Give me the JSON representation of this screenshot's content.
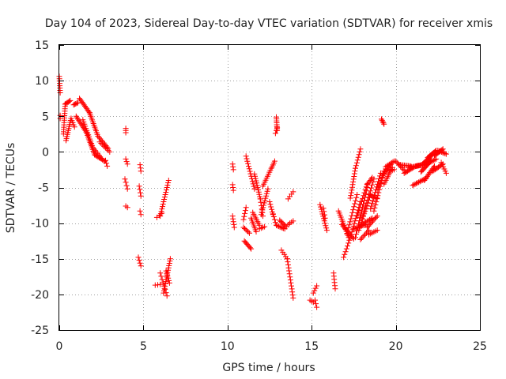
{
  "chart_data": {
    "type": "scatter",
    "title": "Day 104 of 2023, Sidereal Day-to-day VTEC variation (SDTVAR) for receiver xmis",
    "xlabel": "GPS time / hours",
    "ylabel": "SDTVAR / TECUs",
    "xlim": [
      0,
      25
    ],
    "ylim": [
      -25,
      15
    ],
    "x_ticks": [
      0,
      5,
      10,
      15,
      20,
      25
    ],
    "x_tick_labels": [
      "0",
      "5",
      "10",
      "15",
      "20",
      "25"
    ],
    "y_ticks": [
      15,
      10,
      5,
      0,
      -5,
      -10,
      -15,
      -20,
      -25
    ],
    "y_tick_labels": [
      "15",
      "10",
      "5",
      "0",
      "-5",
      "-10",
      "-15",
      "-20",
      "-25"
    ],
    "grid": true,
    "marker": "+",
    "marker_color": "#ff0000",
    "series_segments": [
      {
        "x0": 0.0,
        "y0": 10.6,
        "x1": 0.05,
        "y1": 8.3,
        "n": 8
      },
      {
        "x0": 0.05,
        "y0": 5.1,
        "x1": 0.05,
        "y1": 4.7,
        "n": 2
      },
      {
        "x0": 0.25,
        "y0": 2.5,
        "x1": 0.35,
        "y1": 6.7,
        "n": 14
      },
      {
        "x0": 0.35,
        "y0": 6.7,
        "x1": 0.65,
        "y1": 7.2,
        "n": 6
      },
      {
        "x0": 0.4,
        "y0": 1.6,
        "x1": 0.7,
        "y1": 4.7,
        "n": 12
      },
      {
        "x0": 0.7,
        "y0": 4.7,
        "x1": 0.9,
        "y1": 3.5,
        "n": 5
      },
      {
        "x0": 0.85,
        "y0": 6.6,
        "x1": 1.1,
        "y1": 6.9,
        "n": 5
      },
      {
        "x0": 1.0,
        "y0": 5.0,
        "x1": 1.6,
        "y1": 2.8,
        "n": 12
      },
      {
        "x0": 1.6,
        "y0": 2.8,
        "x1": 2.1,
        "y1": -0.4,
        "n": 14
      },
      {
        "x0": 2.1,
        "y0": -0.4,
        "x1": 2.7,
        "y1": -1.3,
        "n": 10
      },
      {
        "x0": 1.2,
        "y0": 7.5,
        "x1": 1.8,
        "y1": 5.5,
        "n": 12
      },
      {
        "x0": 1.8,
        "y0": 5.5,
        "x1": 2.3,
        "y1": 2.2,
        "n": 14
      },
      {
        "x0": 2.3,
        "y0": 2.2,
        "x1": 2.9,
        "y1": 0.5,
        "n": 10
      },
      {
        "x0": 1.4,
        "y0": 4.5,
        "x1": 2.0,
        "y1": 0.6,
        "n": 14
      },
      {
        "x0": 2.0,
        "y0": 0.6,
        "x1": 2.5,
        "y1": -0.9,
        "n": 8
      },
      {
        "x0": 2.4,
        "y0": 1.4,
        "x1": 3.0,
        "y1": 0.0,
        "n": 8
      },
      {
        "x0": 2.75,
        "y0": -1.2,
        "x1": 2.85,
        "y1": -2.0,
        "n": 3
      },
      {
        "x0": 3.95,
        "y0": 3.3,
        "x1": 3.95,
        "y1": 2.7,
        "n": 3
      },
      {
        "x0": 3.95,
        "y0": -1.0,
        "x1": 4.05,
        "y1": -1.7,
        "n": 3
      },
      {
        "x0": 3.9,
        "y0": -3.8,
        "x1": 4.05,
        "y1": -5.2,
        "n": 4
      },
      {
        "x0": 3.95,
        "y0": -7.6,
        "x1": 4.05,
        "y1": -7.8,
        "n": 2
      },
      {
        "x0": 4.8,
        "y0": -1.8,
        "x1": 4.85,
        "y1": -2.7,
        "n": 3
      },
      {
        "x0": 4.75,
        "y0": -4.8,
        "x1": 4.85,
        "y1": -6.2,
        "n": 4
      },
      {
        "x0": 4.8,
        "y0": -8.3,
        "x1": 4.85,
        "y1": -8.8,
        "n": 2
      },
      {
        "x0": 4.7,
        "y0": -14.8,
        "x1": 4.85,
        "y1": -16.0,
        "n": 4
      },
      {
        "x0": 5.8,
        "y0": -9.2,
        "x1": 6.1,
        "y1": -8.6,
        "n": 3
      },
      {
        "x0": 6.0,
        "y0": -9.0,
        "x1": 6.5,
        "y1": -4.0,
        "n": 16
      },
      {
        "x0": 5.7,
        "y0": -18.7,
        "x1": 6.0,
        "y1": -18.6,
        "n": 3
      },
      {
        "x0": 6.0,
        "y0": -17.0,
        "x1": 6.4,
        "y1": -20.2,
        "n": 8
      },
      {
        "x0": 6.2,
        "y0": -19.8,
        "x1": 6.6,
        "y1": -15.0,
        "n": 16
      },
      {
        "x0": 6.35,
        "y0": -16.7,
        "x1": 6.55,
        "y1": -18.4,
        "n": 6
      },
      {
        "x0": 10.3,
        "y0": -1.7,
        "x1": 10.35,
        "y1": -2.5,
        "n": 3
      },
      {
        "x0": 10.3,
        "y0": -4.6,
        "x1": 10.35,
        "y1": -5.4,
        "n": 3
      },
      {
        "x0": 10.3,
        "y0": -9.0,
        "x1": 10.4,
        "y1": -10.6,
        "n": 5
      },
      {
        "x0": 10.95,
        "y0": -9.5,
        "x1": 11.1,
        "y1": -7.8,
        "n": 5
      },
      {
        "x0": 10.95,
        "y0": -10.6,
        "x1": 11.3,
        "y1": -11.4,
        "n": 6
      },
      {
        "x0": 11.0,
        "y0": -12.5,
        "x1": 11.4,
        "y1": -13.6,
        "n": 8
      },
      {
        "x0": 11.1,
        "y0": -0.6,
        "x1": 11.6,
        "y1": -5.2,
        "n": 14
      },
      {
        "x0": 11.4,
        "y0": -9.3,
        "x1": 11.7,
        "y1": -11.2,
        "n": 8
      },
      {
        "x0": 11.5,
        "y0": -8.5,
        "x1": 11.9,
        "y1": -10.3,
        "n": 8
      },
      {
        "x0": 11.6,
        "y0": -3.1,
        "x1": 11.95,
        "y1": -6.6,
        "n": 12
      },
      {
        "x0": 11.95,
        "y0": -6.6,
        "x1": 12.1,
        "y1": -9.0,
        "n": 6
      },
      {
        "x0": 11.9,
        "y0": -10.8,
        "x1": 12.2,
        "y1": -10.5,
        "n": 4
      },
      {
        "x0": 12.0,
        "y0": -8.8,
        "x1": 12.4,
        "y1": -5.2,
        "n": 12
      },
      {
        "x0": 12.1,
        "y0": -4.8,
        "x1": 12.6,
        "y1": -2.3,
        "n": 10
      },
      {
        "x0": 12.5,
        "y0": -7.0,
        "x1": 12.7,
        "y1": -8.8,
        "n": 6
      },
      {
        "x0": 12.65,
        "y0": -2.1,
        "x1": 12.8,
        "y1": -1.3,
        "n": 4
      },
      {
        "x0": 12.7,
        "y0": -8.7,
        "x1": 12.9,
        "y1": -10.3,
        "n": 5
      },
      {
        "x0": 12.9,
        "y0": 4.9,
        "x1": 12.95,
        "y1": 3.0,
        "n": 8
      },
      {
        "x0": 12.85,
        "y0": 2.6,
        "x1": 12.95,
        "y1": 3.4,
        "n": 3
      },
      {
        "x0": 12.9,
        "y0": -10.3,
        "x1": 13.4,
        "y1": -10.8,
        "n": 8
      },
      {
        "x0": 13.1,
        "y0": -9.6,
        "x1": 13.5,
        "y1": -10.5,
        "n": 7
      },
      {
        "x0": 13.6,
        "y0": -10.2,
        "x1": 13.9,
        "y1": -9.7,
        "n": 4
      },
      {
        "x0": 13.6,
        "y0": -6.6,
        "x1": 13.9,
        "y1": -5.6,
        "n": 4
      },
      {
        "x0": 13.2,
        "y0": -13.8,
        "x1": 13.55,
        "y1": -15.0,
        "n": 5
      },
      {
        "x0": 13.55,
        "y0": -15.0,
        "x1": 13.9,
        "y1": -20.5,
        "n": 14
      },
      {
        "x0": 14.9,
        "y0": -20.8,
        "x1": 15.1,
        "y1": -21.1,
        "n": 3
      },
      {
        "x0": 15.1,
        "y0": -19.8,
        "x1": 15.3,
        "y1": -18.8,
        "n": 4
      },
      {
        "x0": 15.2,
        "y0": -20.8,
        "x1": 15.3,
        "y1": -21.8,
        "n": 3
      },
      {
        "x0": 15.5,
        "y0": -7.4,
        "x1": 15.9,
        "y1": -11.0,
        "n": 12
      },
      {
        "x0": 15.7,
        "y0": -7.9,
        "x1": 15.8,
        "y1": -9.3,
        "n": 4
      },
      {
        "x0": 16.3,
        "y0": -17.0,
        "x1": 16.4,
        "y1": -19.2,
        "n": 6
      },
      {
        "x0": 16.6,
        "y0": -8.3,
        "x1": 17.2,
        "y1": -12.0,
        "n": 14
      },
      {
        "x0": 16.8,
        "y0": -10.2,
        "x1": 17.5,
        "y1": -12.2,
        "n": 12
      },
      {
        "x0": 16.9,
        "y0": -14.8,
        "x1": 17.3,
        "y1": -12.0,
        "n": 8
      },
      {
        "x0": 17.1,
        "y0": -11.5,
        "x1": 17.7,
        "y1": -6.0,
        "n": 14
      },
      {
        "x0": 17.3,
        "y0": -6.5,
        "x1": 17.6,
        "y1": -2.3,
        "n": 12
      },
      {
        "x0": 17.3,
        "y0": -12.0,
        "x1": 17.9,
        "y1": -7.0,
        "n": 14
      },
      {
        "x0": 17.6,
        "y0": -2.3,
        "x1": 17.9,
        "y1": 0.4,
        "n": 8
      },
      {
        "x0": 17.5,
        "y0": -10.8,
        "x1": 18.2,
        "y1": -10.2,
        "n": 10
      },
      {
        "x0": 17.6,
        "y0": -12.0,
        "x1": 18.3,
        "y1": -5.0,
        "n": 16
      },
      {
        "x0": 17.7,
        "y0": -9.0,
        "x1": 18.3,
        "y1": -4.5,
        "n": 12
      },
      {
        "x0": 17.8,
        "y0": -11.0,
        "x1": 18.5,
        "y1": -6.0,
        "n": 14
      },
      {
        "x0": 17.9,
        "y0": -12.3,
        "x1": 18.4,
        "y1": -11.0,
        "n": 8
      },
      {
        "x0": 17.9,
        "y0": -10.3,
        "x1": 18.6,
        "y1": -9.3,
        "n": 10
      },
      {
        "x0": 18.0,
        "y0": -9.3,
        "x1": 18.7,
        "y1": -3.8,
        "n": 14
      },
      {
        "x0": 18.3,
        "y0": -4.6,
        "x1": 18.6,
        "y1": -3.6,
        "n": 6
      },
      {
        "x0": 18.3,
        "y0": -10.6,
        "x1": 18.9,
        "y1": -9.0,
        "n": 10
      },
      {
        "x0": 18.4,
        "y0": -11.6,
        "x1": 18.9,
        "y1": -11.0,
        "n": 6
      },
      {
        "x0": 18.4,
        "y0": -6.0,
        "x1": 18.9,
        "y1": -6.5,
        "n": 6
      },
      {
        "x0": 18.5,
        "y0": -8.0,
        "x1": 19.1,
        "y1": -3.0,
        "n": 14
      },
      {
        "x0": 18.7,
        "y0": -8.3,
        "x1": 19.3,
        "y1": -2.7,
        "n": 14
      },
      {
        "x0": 18.9,
        "y0": -5.3,
        "x1": 19.4,
        "y1": -2.4,
        "n": 10
      },
      {
        "x0": 19.15,
        "y0": 4.6,
        "x1": 19.3,
        "y1": 3.9,
        "n": 5
      },
      {
        "x0": 19.2,
        "y0": -3.3,
        "x1": 19.7,
        "y1": -1.8,
        "n": 10
      },
      {
        "x0": 19.3,
        "y0": -4.5,
        "x1": 19.8,
        "y1": -2.2,
        "n": 10
      },
      {
        "x0": 19.4,
        "y0": -2.1,
        "x1": 19.9,
        "y1": -1.3,
        "n": 8
      },
      {
        "x0": 19.5,
        "y0": -2.7,
        "x1": 19.9,
        "y1": -2.5,
        "n": 5
      },
      {
        "x0": 20.0,
        "y0": -1.3,
        "x1": 20.5,
        "y1": -2.6,
        "n": 8
      },
      {
        "x0": 20.2,
        "y0": -1.8,
        "x1": 20.9,
        "y1": -2.0,
        "n": 10
      },
      {
        "x0": 20.5,
        "y0": -3.0,
        "x1": 21.1,
        "y1": -2.1,
        "n": 10
      },
      {
        "x0": 20.8,
        "y0": -2.2,
        "x1": 21.6,
        "y1": -1.8,
        "n": 12
      },
      {
        "x0": 21.0,
        "y0": -4.7,
        "x1": 21.8,
        "y1": -3.7,
        "n": 12
      },
      {
        "x0": 21.2,
        "y0": -2.0,
        "x1": 21.9,
        "y1": -1.7,
        "n": 10
      },
      {
        "x0": 21.5,
        "y0": -2.8,
        "x1": 22.1,
        "y1": -1.2,
        "n": 12
      },
      {
        "x0": 21.6,
        "y0": -1.7,
        "x1": 22.1,
        "y1": -0.6,
        "n": 10
      },
      {
        "x0": 21.7,
        "y0": -4.0,
        "x1": 22.3,
        "y1": -2.0,
        "n": 12
      },
      {
        "x0": 21.9,
        "y0": -0.8,
        "x1": 22.4,
        "y1": 0.2,
        "n": 10
      },
      {
        "x0": 22.0,
        "y0": -1.5,
        "x1": 22.4,
        "y1": -1.0,
        "n": 6
      },
      {
        "x0": 22.3,
        "y0": -0.5,
        "x1": 22.8,
        "y1": 0.4,
        "n": 10
      },
      {
        "x0": 22.2,
        "y0": -2.7,
        "x1": 22.8,
        "y1": -1.7,
        "n": 10
      },
      {
        "x0": 22.5,
        "y0": 0.2,
        "x1": 23.0,
        "y1": -0.3,
        "n": 8
      },
      {
        "x0": 22.7,
        "y0": -1.5,
        "x1": 23.0,
        "y1": -3.0,
        "n": 6
      }
    ]
  }
}
